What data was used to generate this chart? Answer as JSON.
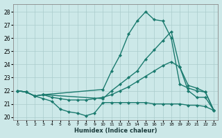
{
  "xlabel": "Humidex (Indice chaleur)",
  "background_color": "#cce8e8",
  "grid_color": "#aacccc",
  "line_color": "#1a7a6e",
  "xlim": [
    -0.5,
    23.5
  ],
  "ylim": [
    19.8,
    28.6
  ],
  "yticks": [
    20,
    21,
    22,
    23,
    24,
    25,
    26,
    27,
    28
  ],
  "xticks": [
    0,
    1,
    2,
    3,
    4,
    5,
    6,
    7,
    8,
    9,
    10,
    11,
    12,
    13,
    14,
    15,
    16,
    17,
    18,
    19,
    20,
    21,
    22,
    23
  ],
  "series": [
    {
      "x": [
        0,
        1,
        2,
        3,
        10,
        11,
        12,
        13,
        14,
        15,
        16,
        17,
        18,
        19,
        20,
        21,
        22,
        23
      ],
      "y": [
        22.0,
        21.9,
        21.6,
        21.7,
        22.1,
        23.5,
        24.7,
        26.3,
        27.3,
        28.0,
        27.4,
        27.3,
        26.0,
        22.5,
        22.2,
        22.0,
        21.9,
        20.5
      ]
    },
    {
      "x": [
        0,
        1,
        2,
        3,
        10,
        11,
        12,
        13,
        14,
        15,
        16,
        17,
        18,
        19,
        20,
        21,
        22,
        23
      ],
      "y": [
        22.0,
        21.9,
        21.6,
        21.7,
        21.4,
        22.0,
        22.5,
        23.0,
        23.5,
        24.4,
        25.1,
        25.8,
        26.5,
        23.8,
        22.4,
        22.2,
        21.9,
        20.5
      ]
    },
    {
      "x": [
        0,
        1,
        2,
        3,
        4,
        5,
        6,
        7,
        8,
        9,
        10,
        11,
        12,
        13,
        14,
        15,
        16,
        17,
        18,
        19,
        20,
        21,
        22,
        23
      ],
      "y": [
        22.0,
        21.9,
        21.6,
        21.7,
        21.5,
        21.4,
        21.3,
        21.3,
        21.3,
        21.4,
        21.5,
        21.7,
        22.0,
        22.3,
        22.7,
        23.1,
        23.5,
        23.9,
        24.2,
        23.8,
        22.0,
        21.5,
        21.5,
        20.5
      ]
    },
    {
      "x": [
        0,
        1,
        2,
        3,
        4,
        5,
        6,
        7,
        8,
        9,
        10,
        11,
        12,
        13,
        14,
        15,
        16,
        17,
        18,
        19,
        20,
        21,
        22,
        23
      ],
      "y": [
        22.0,
        21.9,
        21.6,
        21.4,
        21.2,
        20.6,
        20.4,
        20.3,
        20.1,
        20.3,
        21.1,
        21.1,
        21.1,
        21.1,
        21.1,
        21.1,
        21.0,
        21.0,
        21.0,
        21.0,
        20.9,
        20.9,
        20.8,
        20.5
      ]
    }
  ]
}
